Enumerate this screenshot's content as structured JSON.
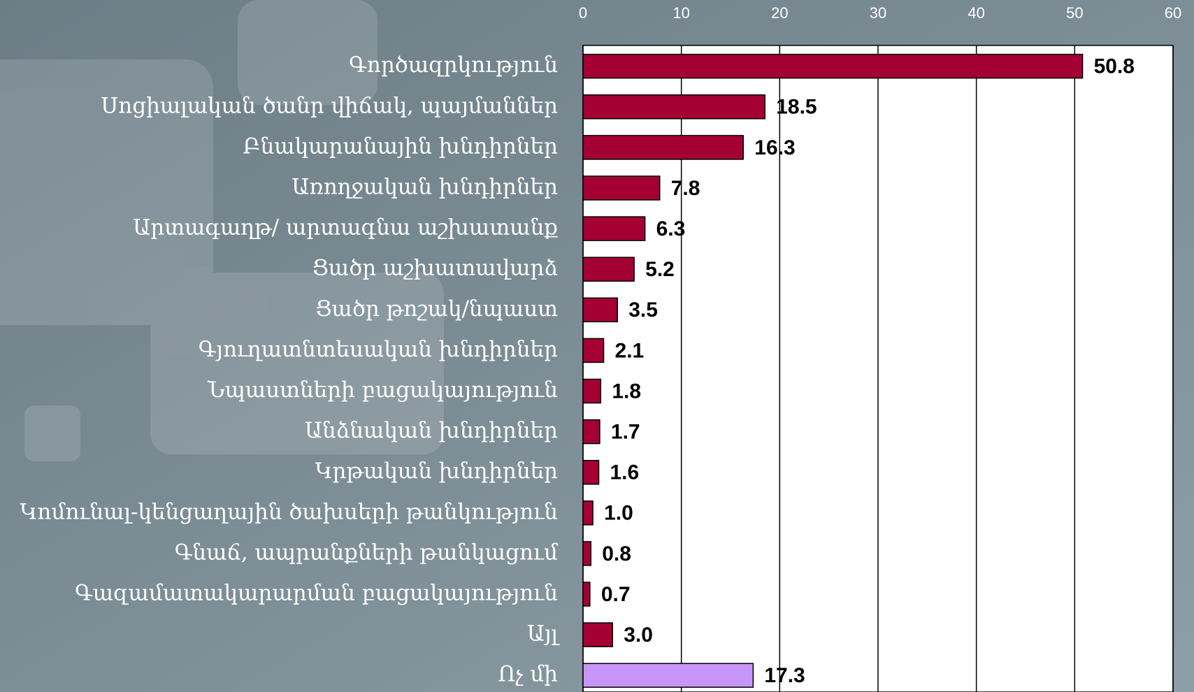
{
  "chart_data": {
    "type": "bar",
    "orientation": "horizontal",
    "categories": [
      "Գործազրկություն",
      "Սոցիալական ծանր վիճակ, պայմաններ",
      "Բնակարանային խնդիրներ",
      "Առողջական խնդիրներ",
      "Արտագաղթ/ արտագնա աշխատանք",
      "Ցածր աշխատավարձ",
      "Ցածր թոշակ/նպաստ",
      "Գյուղատնտեսական խնդիրներ",
      "Նպաստների բացակայություն",
      "Անձնական խնդիրներ",
      "Կրթական խնդիրներ",
      "Կոմունալ-կենցաղային ծախսերի թանկություն",
      "Գնաճ, ապրանքների թանկացում",
      "Գազամատակարարման բացակայություն",
      "Այլ",
      "Ոչ մի"
    ],
    "values": [
      50.8,
      18.5,
      16.3,
      7.8,
      6.3,
      5.2,
      3.5,
      2.1,
      1.8,
      1.7,
      1.6,
      1.0,
      0.8,
      0.7,
      3.0,
      17.3
    ],
    "value_labels": [
      "50.8",
      "18.5",
      "16.3",
      "7.8",
      "6.3",
      "5.2",
      "3.5",
      "2.1",
      "1.8",
      "1.7",
      "1.6",
      "1.0",
      "0.8",
      "0.7",
      "3.0",
      "17.3"
    ],
    "colors": [
      "#a50034",
      "#a50034",
      "#a50034",
      "#a50034",
      "#a50034",
      "#a50034",
      "#a50034",
      "#a50034",
      "#a50034",
      "#a50034",
      "#a50034",
      "#a50034",
      "#a50034",
      "#a50034",
      "#a50034",
      "#c896f8"
    ],
    "xlim": [
      0,
      60
    ],
    "xticks": [
      0,
      10,
      20,
      30,
      40,
      50,
      60
    ],
    "grid": true
  }
}
